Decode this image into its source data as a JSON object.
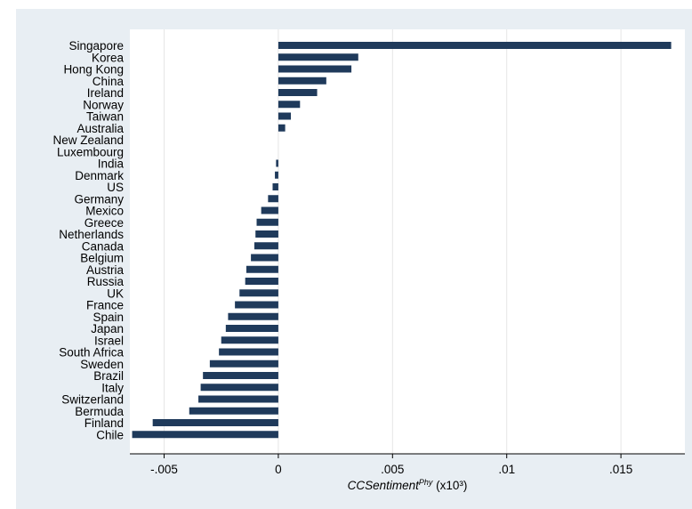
{
  "colors": {
    "outer_bg": "#e8eef3",
    "plot_bg": "#ffffff",
    "bar": "#1f3a5b",
    "grid": "#e6e6e6",
    "axis": "#000000"
  },
  "chart_data": {
    "type": "bar",
    "orientation": "horizontal",
    "xlabel": "CCSentiment",
    "xlabel_sup": "Phy",
    "xlabel_suffix": " (x10³)",
    "xlim": [
      -0.0065,
      0.0178
    ],
    "x_ticks": [
      {
        "value": -0.005,
        "label": "-.005"
      },
      {
        "value": 0,
        "label": "0"
      },
      {
        "value": 0.005,
        "label": ".005"
      },
      {
        "value": 0.01,
        "label": ".01"
      },
      {
        "value": 0.015,
        "label": ".015"
      }
    ],
    "grid": true,
    "categories": [
      "Singapore",
      "Korea",
      "Hong Kong",
      "China",
      "Ireland",
      "Norway",
      "Taiwan",
      "Australia",
      "New Zealand",
      "Luxembourg",
      "India",
      "Denmark",
      "US",
      "Germany",
      "Mexico",
      "Greece",
      "Netherlands",
      "Canada",
      "Belgium",
      "Austria",
      "Russia",
      "UK",
      "France",
      "Spain",
      "Japan",
      "Israel",
      "South Africa",
      "Sweden",
      "Brazil",
      "Italy",
      "Switzerland",
      "Bermuda",
      "Finland",
      "Chile"
    ],
    "values": [
      0.0172,
      0.0035,
      0.0032,
      0.0021,
      0.0017,
      0.00095,
      0.00055,
      0.0003,
      0.0,
      0.0,
      -0.0001,
      -0.00015,
      -0.00025,
      -0.00045,
      -0.00075,
      -0.00095,
      -0.001,
      -0.00105,
      -0.0012,
      -0.0014,
      -0.00145,
      -0.0017,
      -0.0019,
      -0.0022,
      -0.0023,
      -0.0025,
      -0.0026,
      -0.003,
      -0.0033,
      -0.0034,
      -0.0035,
      -0.0039,
      -0.0055,
      -0.0064
    ]
  }
}
